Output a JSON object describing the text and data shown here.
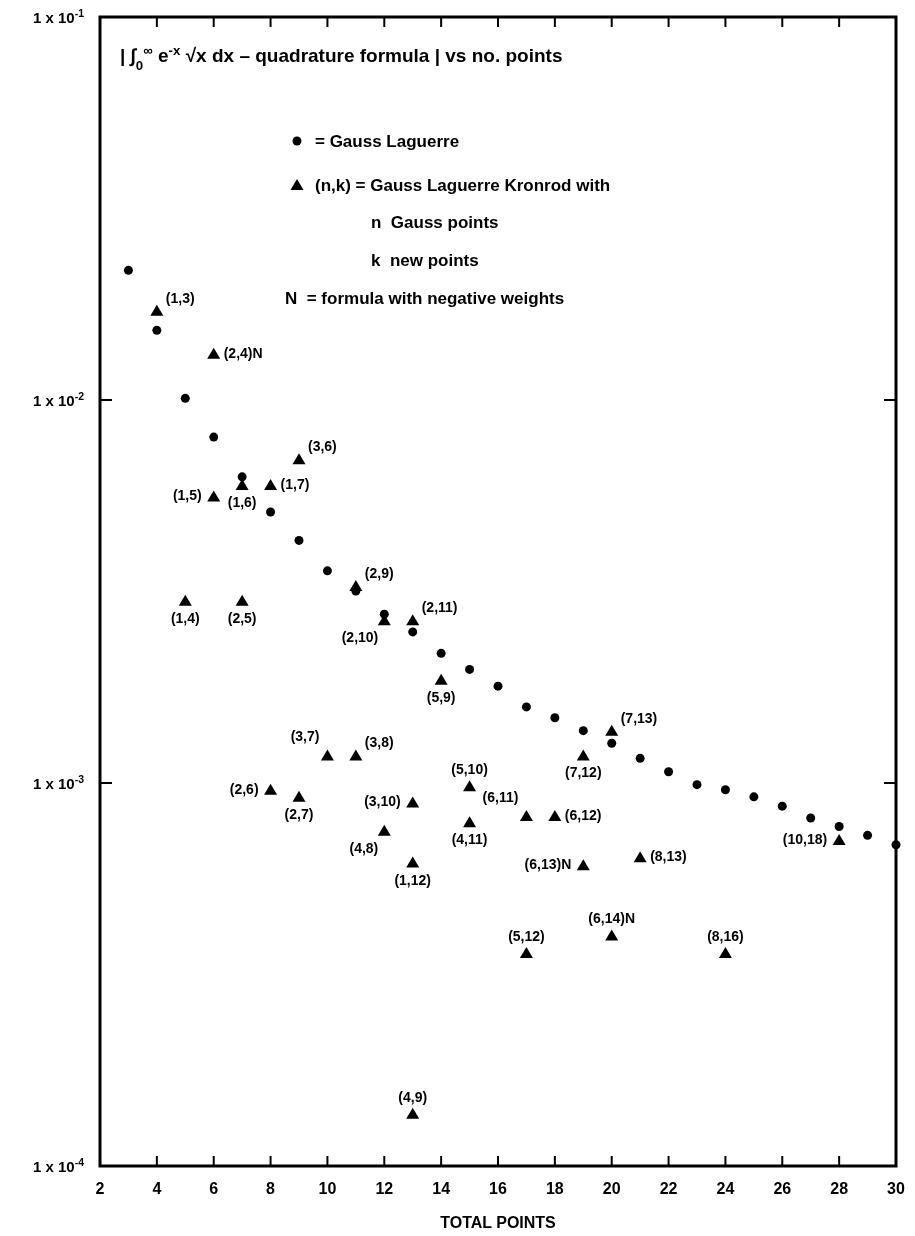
{
  "chart_data": {
    "type": "scatter",
    "title": "| ∫$_{0}$$^{∞}$ e$^{-x}$ √x dx – quadrature formula | vs no. points",
    "xlabel": "TOTAL POINTS",
    "log": "y",
    "grid": false,
    "legend": "top",
    "xlim": [
      2,
      30
    ],
    "xticks": [
      2,
      4,
      6,
      8,
      10,
      12,
      14,
      16,
      18,
      20,
      22,
      24,
      26,
      28,
      30
    ],
    "ylim": [
      0.0001,
      0.1
    ],
    "yticks": [
      {
        "value": 0.1,
        "label": "1 x 10$^{-1}$"
      },
      {
        "value": 0.01,
        "label": "1 x 10$^{-2}$"
      },
      {
        "value": 0.001,
        "label": "1 x 10$^{-3}$"
      },
      {
        "value": 0.0001,
        "label": "1 x 10$^{-4}$"
      }
    ],
    "annotations": [
      "n  Gauss points",
      "k  new points",
      "N  = formula with negative weights",
      {
        "text": "(1,3)",
        "x": 4,
        "y": 0.0171
      },
      {
        "text": "(2,4)N",
        "x": 6,
        "y": 0.0132
      },
      {
        "text": "(3,6)",
        "x": 9,
        "y": 0.007
      },
      {
        "text": "(1,5)",
        "x": 6,
        "y": 0.0056
      },
      {
        "text": "(1,6)",
        "x": 7,
        "y": 0.006
      },
      {
        "text": "(1,7)",
        "x": 8,
        "y": 0.006
      },
      {
        "text": "(1,4)",
        "x": 5,
        "y": 0.00299
      },
      {
        "text": "(2,5)",
        "x": 7,
        "y": 0.00299
      },
      {
        "text": "(2,9)",
        "x": 11,
        "y": 0.00327
      },
      {
        "text": "(2,10)",
        "x": 12,
        "y": 0.00266
      },
      {
        "text": "(2,11)",
        "x": 13,
        "y": 0.00266
      },
      {
        "text": "(5,9)",
        "x": 14,
        "y": 0.00186
      },
      {
        "text": "(7,13)",
        "x": 20,
        "y": 0.00137
      },
      {
        "text": "(7,12)",
        "x": 19,
        "y": 0.00118
      },
      {
        "text": "(3,7)",
        "x": 10,
        "y": 0.00118
      },
      {
        "text": "(3,8)",
        "x": 11,
        "y": 0.00118
      },
      {
        "text": "(2,6)",
        "x": 8,
        "y": 0.00096
      },
      {
        "text": "(2,7)",
        "x": 9,
        "y": 0.00092
      },
      {
        "text": "(3,10)",
        "x": 13,
        "y": 0.00089
      },
      {
        "text": "(5,10)",
        "x": 15,
        "y": 0.00098
      },
      {
        "text": "(4,8)",
        "x": 12,
        "y": 0.00075
      },
      {
        "text": "(4,11)",
        "x": 15,
        "y": 0.00079
      },
      {
        "text": "(1,12)",
        "x": 13,
        "y": 0.00062
      },
      {
        "text": "(6,11)",
        "x": 17,
        "y": 0.00082
      },
      {
        "text": "(6,12)",
        "x": 18,
        "y": 0.00082
      },
      {
        "text": "(6,13)N",
        "x": 19,
        "y": 0.00061
      },
      {
        "text": "(8,13)",
        "x": 21,
        "y": 0.00064
      },
      {
        "text": "(10,18)",
        "x": 28,
        "y": 0.00071
      },
      {
        "text": "(5,12)",
        "x": 17,
        "y": 0.00036
      },
      {
        "text": "(6,14)N",
        "x": 20,
        "y": 0.0004
      },
      {
        "text": "(8,16)",
        "x": 24,
        "y": 0.00036
      },
      {
        "text": "(4,9)",
        "x": 13,
        "y": 0.000137
      }
    ],
    "series": [
      {
        "name": "= Gauss Laguerre",
        "color": "#000000",
        "marker": "circle",
        "x": [
          3,
          4,
          5,
          6,
          7,
          8,
          9,
          10,
          11,
          12,
          13,
          14,
          15,
          16,
          17,
          18,
          19,
          20,
          21,
          22,
          23,
          24,
          25,
          26,
          27,
          28,
          29,
          30
        ],
        "values": [
          0.0218,
          0.0152,
          0.0101,
          0.008,
          0.0063,
          0.0051,
          0.0043,
          0.00358,
          0.00317,
          0.00276,
          0.00248,
          0.00218,
          0.00198,
          0.00179,
          0.00158,
          0.00148,
          0.00137,
          0.00127,
          0.00116,
          0.00107,
          0.00099,
          0.00096,
          0.00092,
          0.00087,
          0.00081,
          0.00077,
          0.00073,
          0.00069
        ]
      },
      {
        "name": "(n,k) = Gauss Laguerre Kronrod with",
        "color": "#000000",
        "marker": "triangle",
        "x": [
          4,
          6,
          9,
          6,
          7,
          8,
          5,
          7,
          11,
          12,
          13,
          14,
          20,
          19,
          10,
          11,
          8,
          9,
          13,
          15,
          12,
          15,
          13,
          17,
          18,
          19,
          21,
          28,
          17,
          20,
          24,
          13
        ],
        "values": [
          0.0171,
          0.0132,
          0.007,
          0.0056,
          0.006,
          0.006,
          0.00299,
          0.00299,
          0.00327,
          0.00266,
          0.00266,
          0.00186,
          0.00137,
          0.00118,
          0.00118,
          0.00118,
          0.00096,
          0.00092,
          0.00089,
          0.00098,
          0.00075,
          0.00079,
          0.00062,
          0.00082,
          0.00082,
          0.00061,
          0.00064,
          0.00071,
          0.00036,
          0.0004,
          0.00036,
          0.000137
        ]
      }
    ]
  }
}
